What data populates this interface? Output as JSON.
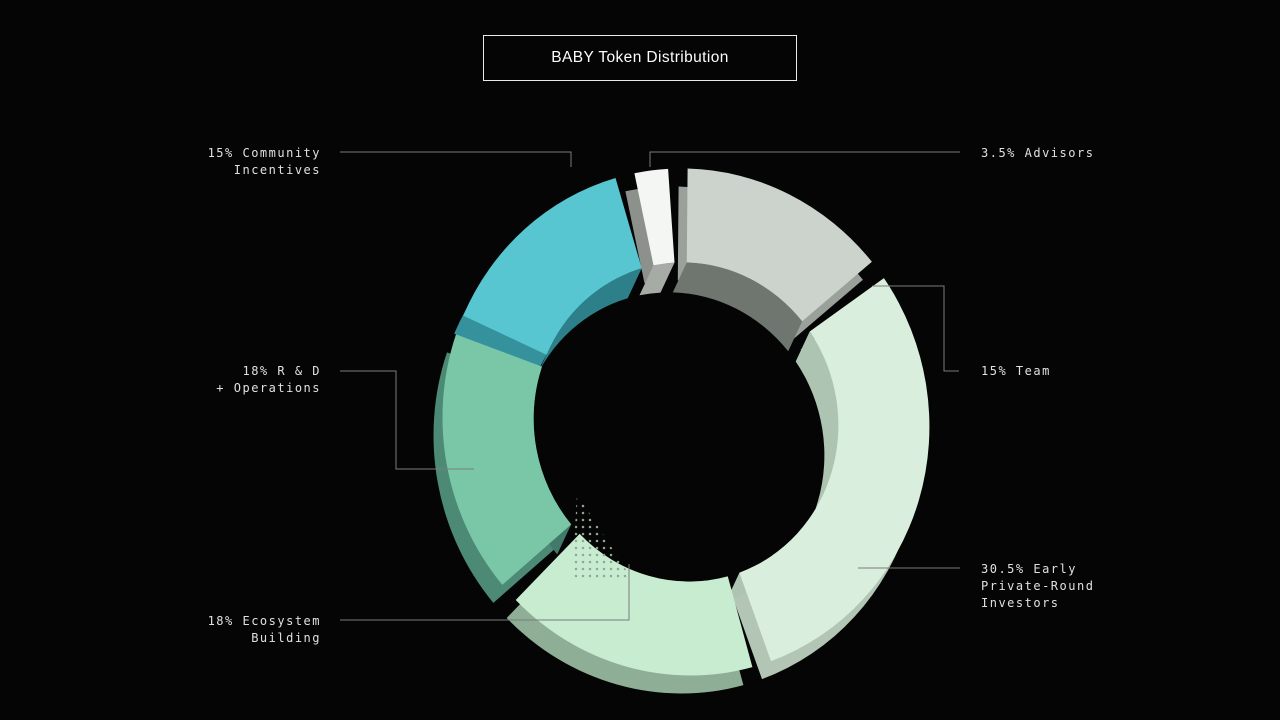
{
  "title_box": {
    "label": "BABY Token Distribution"
  },
  "chart_data": {
    "type": "pie",
    "variant": "3d-donut",
    "title": "BABY Token Distribution",
    "unit": "%",
    "total": 100,
    "background": "#050505",
    "segments": [
      {
        "id": "advisors",
        "label": "Advisors",
        "value": 3.5,
        "callout": "3.5% Advisors",
        "color": "#f4f6f3",
        "wall_color": "#a7aba6",
        "depth_color": "#8d918c"
      },
      {
        "id": "team",
        "label": "Team",
        "value": 15,
        "callout": "15% Team",
        "color": "#ccd3cd",
        "wall_color": "#6f756f",
        "depth_color": "#9aa19b"
      },
      {
        "id": "investors",
        "label": "Early Private-Round Investors",
        "value": 30.5,
        "callout": "30.5% Early Private-Round Investors",
        "color": "#d9eedd",
        "wall_color": "#aec4b2",
        "depth_color": "#b3c6b6"
      },
      {
        "id": "ecosystem",
        "label": "Ecosystem Building",
        "value": 18,
        "callout": "18% Ecosystem Building",
        "color": "#c8ecd0",
        "wall_color": "#94b59b",
        "depth_color": "#8fae96"
      },
      {
        "id": "rnd",
        "label": "R & D + Operations",
        "value": 18,
        "callout": "18% R & D + Operations",
        "color": "#7ac7a7",
        "wall_color": "#41796a",
        "depth_color": "#4c8a76"
      },
      {
        "id": "community",
        "label": "Community Incentives",
        "value": 15,
        "callout": "15% Community Incentives",
        "color": "#58c6d0",
        "wall_color": "#2d7f89",
        "depth_color": "#35929c"
      }
    ]
  },
  "callouts": {
    "community": {
      "lines": [
        "15% Community",
        "Incentives"
      ]
    },
    "advisors": {
      "lines": [
        "3.5% Advisors"
      ]
    },
    "team": {
      "lines": [
        "15% Team"
      ]
    },
    "investors": {
      "lines": [
        "30.5% Early",
        "Private-Round",
        "Investors"
      ]
    },
    "ecosystem": {
      "lines": [
        "18% Ecosystem",
        "Building"
      ]
    },
    "rnd": {
      "lines": [
        "18% R & D",
        "+ Operations"
      ]
    }
  }
}
